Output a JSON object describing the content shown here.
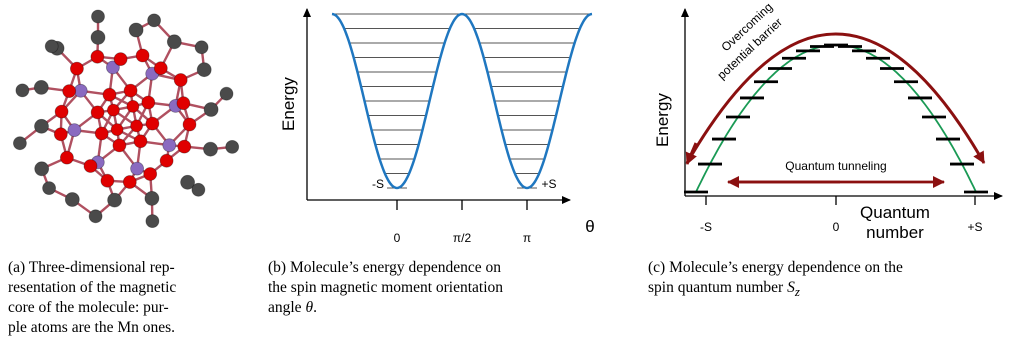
{
  "figure": {
    "panels": [
      {
        "id": "a",
        "caption_lines": [
          "(a) Three-dimensional rep-",
          "resentation of the magnetic",
          "core of the molecule: pur-",
          "ple atoms are the Mn ones."
        ]
      },
      {
        "id": "b",
        "caption_lines": [
          "(b) Molecule’s energy dependence on",
          "the spin magnetic moment orientation"
        ],
        "caption_last_prefix": "angle ",
        "caption_last_symbol": "θ",
        "caption_last_suffix": "."
      },
      {
        "id": "c",
        "caption_lines": [
          "(c) Molecule’s energy dependence on the"
        ],
        "caption_last_prefix": "spin quantum number ",
        "caption_last_symbol": "S",
        "caption_last_sub": "z"
      }
    ]
  },
  "colors": {
    "curve_blue": "#1f77c0",
    "curve_green": "#1a9a55",
    "arrow_red": "#8b1010",
    "atom_red": "#e00000",
    "atom_gray": "#4a4a4a",
    "atom_purple": "#8a6ac0",
    "bond": "#b05060"
  },
  "chart_data": [
    {
      "panel": "b",
      "type": "line",
      "ylabel": "Energy",
      "xlabel": "θ",
      "x_ticks": [
        "0",
        "π/2",
        "π"
      ],
      "well_labels": [
        "-S",
        "+S"
      ],
      "energy_level_count": 13
    },
    {
      "panel": "c",
      "type": "scatter",
      "ylabel": "Energy",
      "xlabel_line1": "Quantum",
      "xlabel_line2": "number",
      "x_ticks": [
        "-S",
        "0",
        "+S"
      ],
      "levels_per_side": 10,
      "barrier_label_line1": "Overcoming",
      "barrier_label_line2": "potential barrier",
      "tunneling_label": "Quantum tunneling"
    }
  ]
}
